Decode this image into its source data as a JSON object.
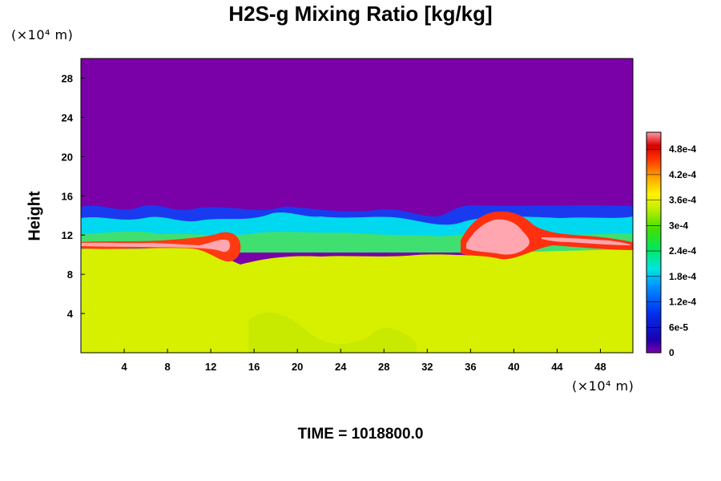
{
  "chart_data": {
    "type": "heatmap",
    "title": "H2S-g Mixing Ratio [kg/kg]",
    "xlabel": "",
    "ylabel": "Height",
    "x_unit": "(×10⁴ m)",
    "y_unit": "(×10⁴ m)",
    "xlim": [
      0,
      51
    ],
    "ylim": [
      0,
      30
    ],
    "x_ticks": [
      4,
      8,
      12,
      16,
      20,
      24,
      28,
      32,
      36,
      40,
      44,
      48
    ],
    "y_ticks": [
      4,
      8,
      12,
      16,
      20,
      24,
      28
    ],
    "grid": false,
    "colorbar": {
      "min": 0,
      "max": 0.00052,
      "labels": [
        "0",
        "6e-5",
        "1.2e-4",
        "1.8e-4",
        "2.4e-4",
        "3e-4",
        "3.6e-4",
        "4.2e-4",
        "4.8e-4"
      ],
      "label_values": [
        0,
        6e-05,
        0.00012,
        0.00018,
        0.00024,
        0.0003,
        0.00036,
        0.00042,
        0.00048
      ]
    },
    "regions": [
      {
        "name": "upper",
        "y_range": [
          14,
          30
        ],
        "value": 0
      },
      {
        "name": "transition",
        "y_range": [
          10.5,
          15
        ],
        "value_range": [
          0,
          0.00052
        ]
      },
      {
        "name": "lower",
        "y_range": [
          0,
          10.5
        ],
        "value": 0.00033
      }
    ],
    "footer": "TIME = 1018800.0"
  }
}
